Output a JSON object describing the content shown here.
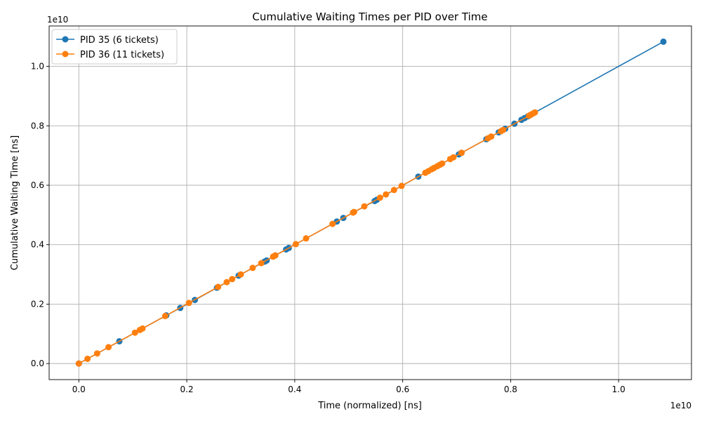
{
  "chart_data": {
    "type": "line",
    "title": "Cumulative Waiting Times per PID over Time",
    "xlabel": "Time (normalized) [ns]",
    "ylabel": "Cumulative Waiting Time [ns]",
    "x_offset_text": "1e10",
    "y_offset_text": "1e10",
    "xlim": [
      -0.055,
      1.135
    ],
    "ylim": [
      -0.054,
      1.136
    ],
    "x_ticks": [
      0.0,
      0.2,
      0.4,
      0.6,
      0.8,
      1.0
    ],
    "y_ticks": [
      0.0,
      0.2,
      0.4,
      0.6,
      0.8,
      1.0
    ],
    "x_tick_labels": [
      "0.0",
      "0.2",
      "0.4",
      "0.6",
      "0.8",
      "1.0"
    ],
    "y_tick_labels": [
      "0.0",
      "0.2",
      "0.4",
      "0.6",
      "0.8",
      "1.0"
    ],
    "grid": true,
    "legend_position": "top-left",
    "series": [
      {
        "name": "PID 35 (6 tickets)",
        "color": "#1f77b4",
        "points": [
          [
            0.0,
            0.0
          ],
          [
            0.075,
            0.075
          ],
          [
            0.162,
            0.162
          ],
          [
            0.188,
            0.187
          ],
          [
            0.215,
            0.214
          ],
          [
            0.256,
            0.255
          ],
          [
            0.296,
            0.296
          ],
          [
            0.344,
            0.343
          ],
          [
            0.348,
            0.347
          ],
          [
            0.364,
            0.364
          ],
          [
            0.384,
            0.384
          ],
          [
            0.389,
            0.389
          ],
          [
            0.478,
            0.478
          ],
          [
            0.49,
            0.49
          ],
          [
            0.548,
            0.547
          ],
          [
            0.552,
            0.551
          ],
          [
            0.629,
            0.629
          ],
          [
            0.704,
            0.704
          ],
          [
            0.709,
            0.709
          ],
          [
            0.755,
            0.755
          ],
          [
            0.778,
            0.778
          ],
          [
            0.79,
            0.79
          ],
          [
            0.807,
            0.807
          ],
          [
            0.82,
            0.82
          ],
          [
            0.826,
            0.826
          ],
          [
            0.832,
            0.832
          ],
          [
            0.836,
            0.836
          ],
          [
            1.083,
            1.083
          ]
        ]
      },
      {
        "name": "PID 36 (11 tickets)",
        "color": "#ff7f0e",
        "points": [
          [
            0.0,
            0.0
          ],
          [
            0.016,
            0.016
          ],
          [
            0.034,
            0.034
          ],
          [
            0.055,
            0.055
          ],
          [
            0.104,
            0.104
          ],
          [
            0.113,
            0.113
          ],
          [
            0.118,
            0.118
          ],
          [
            0.16,
            0.16
          ],
          [
            0.204,
            0.204
          ],
          [
            0.258,
            0.258
          ],
          [
            0.274,
            0.274
          ],
          [
            0.284,
            0.284
          ],
          [
            0.3,
            0.3
          ],
          [
            0.322,
            0.322
          ],
          [
            0.338,
            0.338
          ],
          [
            0.36,
            0.36
          ],
          [
            0.364,
            0.364
          ],
          [
            0.402,
            0.402
          ],
          [
            0.421,
            0.421
          ],
          [
            0.47,
            0.47
          ],
          [
            0.508,
            0.508
          ],
          [
            0.51,
            0.51
          ],
          [
            0.529,
            0.529
          ],
          [
            0.558,
            0.558
          ],
          [
            0.569,
            0.569
          ],
          [
            0.584,
            0.584
          ],
          [
            0.598,
            0.598
          ],
          [
            0.642,
            0.642
          ],
          [
            0.648,
            0.648
          ],
          [
            0.654,
            0.654
          ],
          [
            0.658,
            0.658
          ],
          [
            0.664,
            0.664
          ],
          [
            0.669,
            0.669
          ],
          [
            0.673,
            0.673
          ],
          [
            0.688,
            0.688
          ],
          [
            0.694,
            0.694
          ],
          [
            0.709,
            0.709
          ],
          [
            0.758,
            0.758
          ],
          [
            0.764,
            0.764
          ],
          [
            0.782,
            0.782
          ],
          [
            0.786,
            0.786
          ],
          [
            0.834,
            0.834
          ],
          [
            0.838,
            0.838
          ],
          [
            0.842,
            0.842
          ],
          [
            0.845,
            0.845
          ]
        ]
      }
    ]
  }
}
